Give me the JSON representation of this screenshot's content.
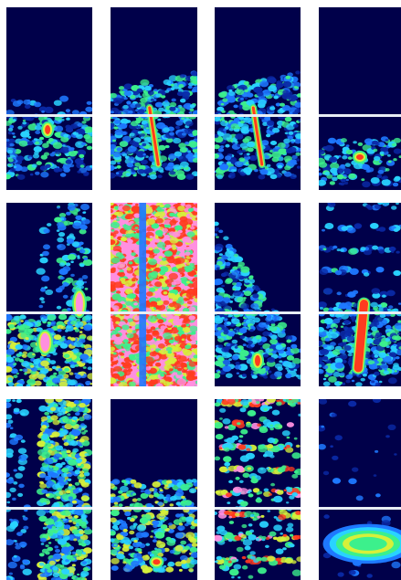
{
  "image": {
    "description_free": true,
    "grid": {
      "rows": 3,
      "cols": 4
    },
    "colormap": [
      "#00004a",
      "#0a2aa8",
      "#1e78ff",
      "#29d3ff",
      "#3cf08c",
      "#d6f03a",
      "#ff3b1f",
      "#ff8fe0"
    ],
    "background": "#ffffff",
    "panels": [
      {
        "id": "r1c1",
        "feature": "noise-band-with-hotspot",
        "hot": "#ff3b1f"
      },
      {
        "id": "r1c2",
        "feature": "noise-band-with-diagonal-streak",
        "hot": "#ff3b1f"
      },
      {
        "id": "r1c3",
        "feature": "noise-band-with-diagonal-streak",
        "hot": "#ff3b1f"
      },
      {
        "id": "r1c4",
        "feature": "low-band-with-small-hotspot",
        "hot": "#ff3b1f"
      },
      {
        "id": "r2c1",
        "feature": "vertical-bands-magenta-patches",
        "hot": "#ff8fe0"
      },
      {
        "id": "r2c2",
        "feature": "dense-magenta-red-field",
        "hot": "#ff8fe0"
      },
      {
        "id": "r2c3",
        "feature": "sloped-band",
        "hot": "#ff3b1f"
      },
      {
        "id": "r2c4",
        "feature": "band-with-large-red-streak",
        "hot": "#ff3b1f"
      },
      {
        "id": "r3c1",
        "feature": "vertical-band-column",
        "hot": "#ff3b1f"
      },
      {
        "id": "r3c2",
        "feature": "low-band-with-hotspot",
        "hot": "#ff3b1f"
      },
      {
        "id": "r3c3",
        "feature": "horizontal-stripes",
        "hot": "#ff3b1f"
      },
      {
        "id": "r3c4",
        "feature": "oval-layered-stripes",
        "hot": "#ff3b1f"
      }
    ]
  }
}
